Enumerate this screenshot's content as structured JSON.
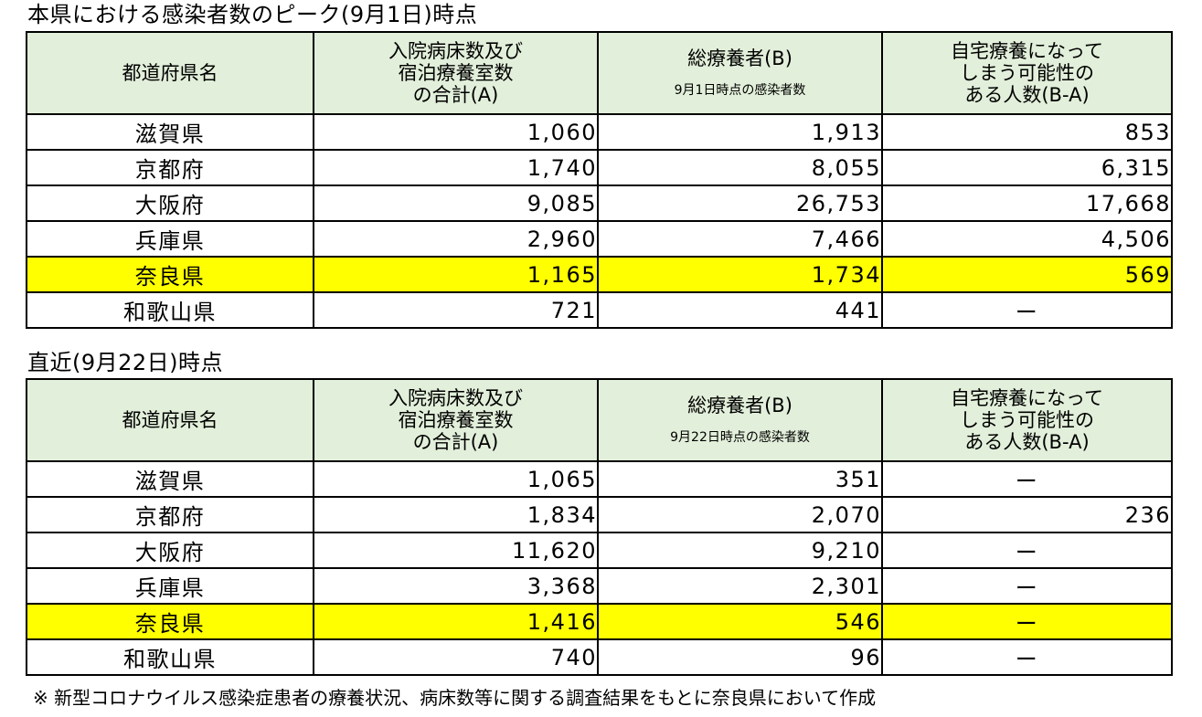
{
  "section1": {
    "title": "本県における感染者数のピーク(9月1日)時点",
    "headers": {
      "prefecture": "都道府県名",
      "beds_line1": "入院病床数及び",
      "beds_line2": "宿泊療養室数",
      "beds_line3": "の合計(A)",
      "total": "総療養者(B)",
      "total_sub": "9月1日時点の感染者数",
      "home_line1": "自宅療養になって",
      "home_line2": "しまう可能性の",
      "home_line3": "ある人数(B-A)"
    },
    "rows": [
      {
        "prefecture": "滋賀県",
        "beds": "1,060",
        "total": "1,913",
        "home": "853"
      },
      {
        "prefecture": "京都府",
        "beds": "1,740",
        "total": "8,055",
        "home": "6,315"
      },
      {
        "prefecture": "大阪府",
        "beds": "9,085",
        "total": "26,753",
        "home": "17,668"
      },
      {
        "prefecture": "兵庫県",
        "beds": "2,960",
        "total": "7,466",
        "home": "4,506"
      },
      {
        "prefecture": "奈良県",
        "beds": "1,165",
        "total": "1,734",
        "home": "569"
      },
      {
        "prefecture": "和歌山県",
        "beds": "721",
        "total": "441",
        "home": "ー"
      }
    ]
  },
  "section2": {
    "title": "直近(9月22日)時点",
    "headers": {
      "prefecture": "都道府県名",
      "beds_line1": "入院病床数及び",
      "beds_line2": "宿泊療養室数",
      "beds_line3": "の合計(A)",
      "total": "総療養者(B)",
      "total_sub": "9月22日時点の感染者数",
      "home_line1": "自宅療養になって",
      "home_line2": "しまう可能性の",
      "home_line3": "ある人数(B-A)"
    },
    "rows": [
      {
        "prefecture": "滋賀県",
        "beds": "1,065",
        "total": "351",
        "home": "ー"
      },
      {
        "prefecture": "京都府",
        "beds": "1,834",
        "total": "2,070",
        "home": "236"
      },
      {
        "prefecture": "大阪府",
        "beds": "11,620",
        "total": "9,210",
        "home": "ー"
      },
      {
        "prefecture": "兵庫県",
        "beds": "3,368",
        "total": "2,301",
        "home": "ー"
      },
      {
        "prefecture": "奈良県",
        "beds": "1,416",
        "total": "546",
        "home": "ー"
      },
      {
        "prefecture": "和歌山県",
        "beds": "740",
        "total": "96",
        "home": "ー"
      }
    ]
  },
  "highlight_prefecture": "奈良県",
  "colors": {
    "header_bg": "#e2efda",
    "highlight": "#ffff00",
    "border": "#000000"
  },
  "footnote": "※ 新型コロナウイルス感染症患者の療養状況、病床数等に関する調査結果をもとに奈良県において作成"
}
